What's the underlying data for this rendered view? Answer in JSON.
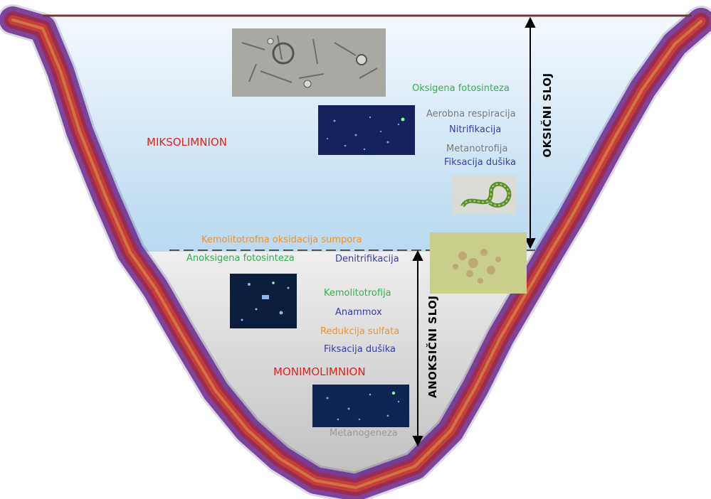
{
  "zones": {
    "upper": "MIKSOLIMNION",
    "lower": "MONIMOLIMNION"
  },
  "layers": {
    "oxic": "OKSIČNI SLOJ",
    "anoxic": "ANOKSIČNI SLOJ"
  },
  "processes": {
    "oxygenic_photosynthesis": "Oksigena fotosinteza",
    "aerobic_respiration": "Aerobna respiracija",
    "nitrification": "Nitrifikacija",
    "methanotrophy": "Metanotrofija",
    "nitrogen_fixation_upper": "Fiksacija dušika",
    "sulfur_oxidation": "Kemolitotrofna oksidacija sumpora",
    "anoxygenic_photosynthesis": "Anoksigena fotosinteza",
    "denitrification": "Denitrifikacija",
    "chemolithotrophy": "Kemolitotrofija",
    "anammox": "Anammox",
    "sulfate_reduction": "Redukcija sulfata",
    "nitrogen_fixation_lower": "Fiksacija dušika",
    "methanogenesis": "Metanogeneza"
  },
  "colors": {
    "oxygenic": "#2db34a",
    "gray": "#7a7a7a",
    "nitrogen": "#3a3aa8",
    "sulfur": "#f0922b",
    "zone": "#e0241c"
  }
}
